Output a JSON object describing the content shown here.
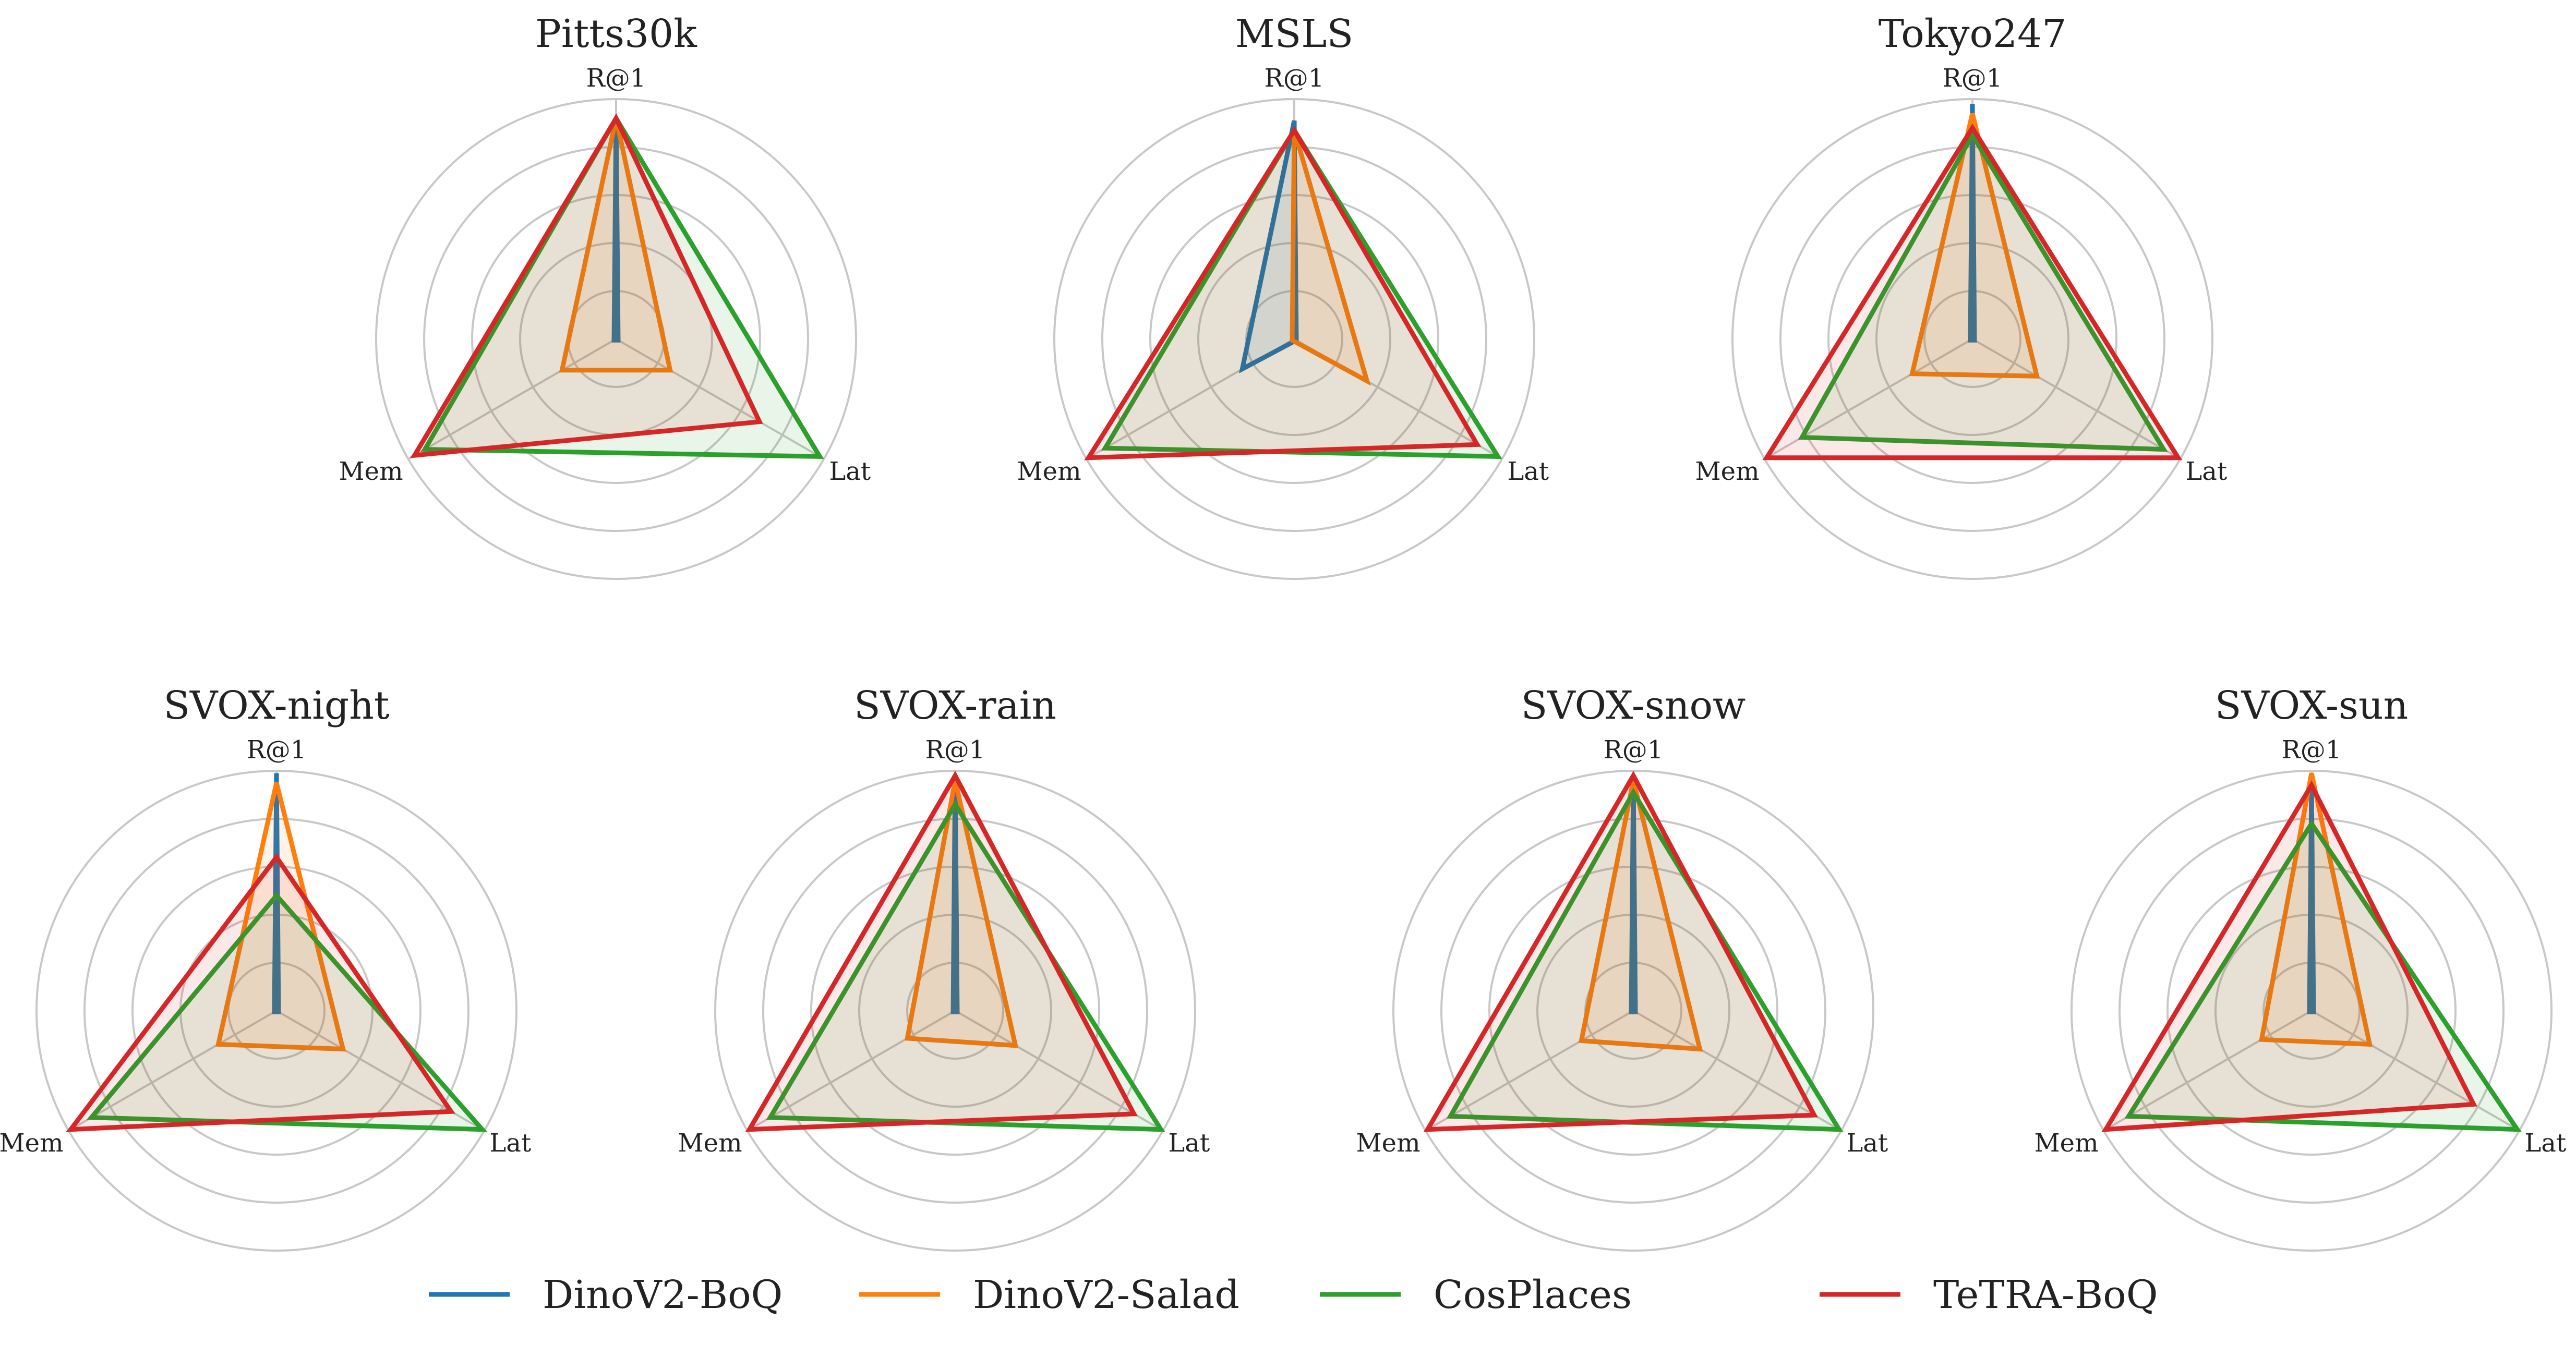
{
  "chart_data": [
    {
      "type": "radar",
      "title": "Pitts30k",
      "axes": [
        "R@1",
        "Lat",
        "Mem"
      ],
      "rmax": 1.0,
      "ring_count": 5,
      "series": [
        {
          "name": "DinoV2-BoQ",
          "values": [
            0.92,
            0.01,
            0.01
          ]
        },
        {
          "name": "DinoV2-Salad",
          "values": [
            0.92,
            0.26,
            0.26
          ]
        },
        {
          "name": "CosPlaces",
          "values": [
            0.92,
            0.98,
            0.92
          ]
        },
        {
          "name": "TeTRA-BoQ",
          "values": [
            0.92,
            0.69,
            0.97
          ]
        }
      ]
    },
    {
      "type": "radar",
      "title": "MSLS",
      "axes": [
        "R@1",
        "Lat",
        "Mem"
      ],
      "rmax": 1.0,
      "ring_count": 5,
      "series": [
        {
          "name": "DinoV2-BoQ",
          "values": [
            0.91,
            0.01,
            0.25
          ]
        },
        {
          "name": "DinoV2-Salad",
          "values": [
            0.87,
            0.35,
            0.01
          ]
        },
        {
          "name": "CosPlaces",
          "values": [
            0.87,
            0.98,
            0.91
          ]
        },
        {
          "name": "TeTRA-BoQ",
          "values": [
            0.87,
            0.88,
            0.99
          ]
        }
      ]
    },
    {
      "type": "radar",
      "title": "Tokyo247",
      "axes": [
        "R@1",
        "Lat",
        "Mem"
      ],
      "rmax": 1.0,
      "ring_count": 5,
      "series": [
        {
          "name": "DinoV2-BoQ",
          "values": [
            0.98,
            0.01,
            0.01
          ]
        },
        {
          "name": "DinoV2-Salad",
          "values": [
            0.94,
            0.31,
            0.29
          ]
        },
        {
          "name": "CosPlaces",
          "values": [
            0.85,
            0.92,
            0.82
          ]
        },
        {
          "name": "TeTRA-BoQ",
          "values": [
            0.88,
            0.99,
            0.99
          ]
        }
      ]
    },
    {
      "type": "radar",
      "title": "SVOX-night",
      "axes": [
        "R@1",
        "Lat",
        "Mem"
      ],
      "rmax": 1.0,
      "ring_count": 5,
      "series": [
        {
          "name": "DinoV2-BoQ",
          "values": [
            0.99,
            0.01,
            0.01
          ]
        },
        {
          "name": "DinoV2-Salad",
          "values": [
            0.95,
            0.32,
            0.28
          ]
        },
        {
          "name": "CosPlaces",
          "values": [
            0.48,
            0.99,
            0.89
          ]
        },
        {
          "name": "TeTRA-BoQ",
          "values": [
            0.64,
            0.84,
            0.99
          ]
        }
      ]
    },
    {
      "type": "radar",
      "title": "SVOX-rain",
      "axes": [
        "R@1",
        "Lat",
        "Mem"
      ],
      "rmax": 1.0,
      "ring_count": 5,
      "series": [
        {
          "name": "DinoV2-BoQ",
          "values": [
            0.98,
            0.01,
            0.01
          ]
        },
        {
          "name": "DinoV2-Salad",
          "values": [
            0.96,
            0.29,
            0.23
          ]
        },
        {
          "name": "CosPlaces",
          "values": [
            0.86,
            0.99,
            0.89
          ]
        },
        {
          "name": "TeTRA-BoQ",
          "values": [
            0.98,
            0.86,
            0.99
          ]
        }
      ]
    },
    {
      "type": "radar",
      "title": "SVOX-snow",
      "axes": [
        "R@1",
        "Lat",
        "Mem"
      ],
      "rmax": 1.0,
      "ring_count": 5,
      "series": [
        {
          "name": "DinoV2-BoQ",
          "values": [
            0.96,
            0.01,
            0.01
          ]
        },
        {
          "name": "DinoV2-Salad",
          "values": [
            0.96,
            0.32,
            0.25
          ]
        },
        {
          "name": "CosPlaces",
          "values": [
            0.91,
            0.99,
            0.88
          ]
        },
        {
          "name": "TeTRA-BoQ",
          "values": [
            0.98,
            0.87,
            0.99
          ]
        }
      ]
    },
    {
      "type": "radar",
      "title": "SVOX-sun",
      "axes": [
        "R@1",
        "Lat",
        "Mem"
      ],
      "rmax": 1.0,
      "ring_count": 5,
      "series": [
        {
          "name": "DinoV2-BoQ",
          "values": [
            0.95,
            0.01,
            0.01
          ]
        },
        {
          "name": "DinoV2-Salad",
          "values": [
            0.99,
            0.28,
            0.24
          ]
        },
        {
          "name": "CosPlaces",
          "values": [
            0.78,
            0.99,
            0.88
          ]
        },
        {
          "name": "TeTRA-BoQ",
          "values": [
            0.94,
            0.78,
            0.99
          ]
        }
      ]
    }
  ],
  "legend": {
    "placement": "bottom-center",
    "items": [
      {
        "name": "DinoV2-BoQ",
        "color": "#1f77b4"
      },
      {
        "name": "DinoV2-Salad",
        "color": "#ff7f0e"
      },
      {
        "name": "CosPlaces",
        "color": "#2ca02c"
      },
      {
        "name": "TeTRA-BoQ",
        "color": "#d62728"
      }
    ]
  },
  "colors": {
    "DinoV2-BoQ": "#1f77b4",
    "DinoV2-Salad": "#ff7f0e",
    "CosPlaces": "#2ca02c",
    "TeTRA-BoQ": "#d62728",
    "grid": "#c8c8c8"
  }
}
